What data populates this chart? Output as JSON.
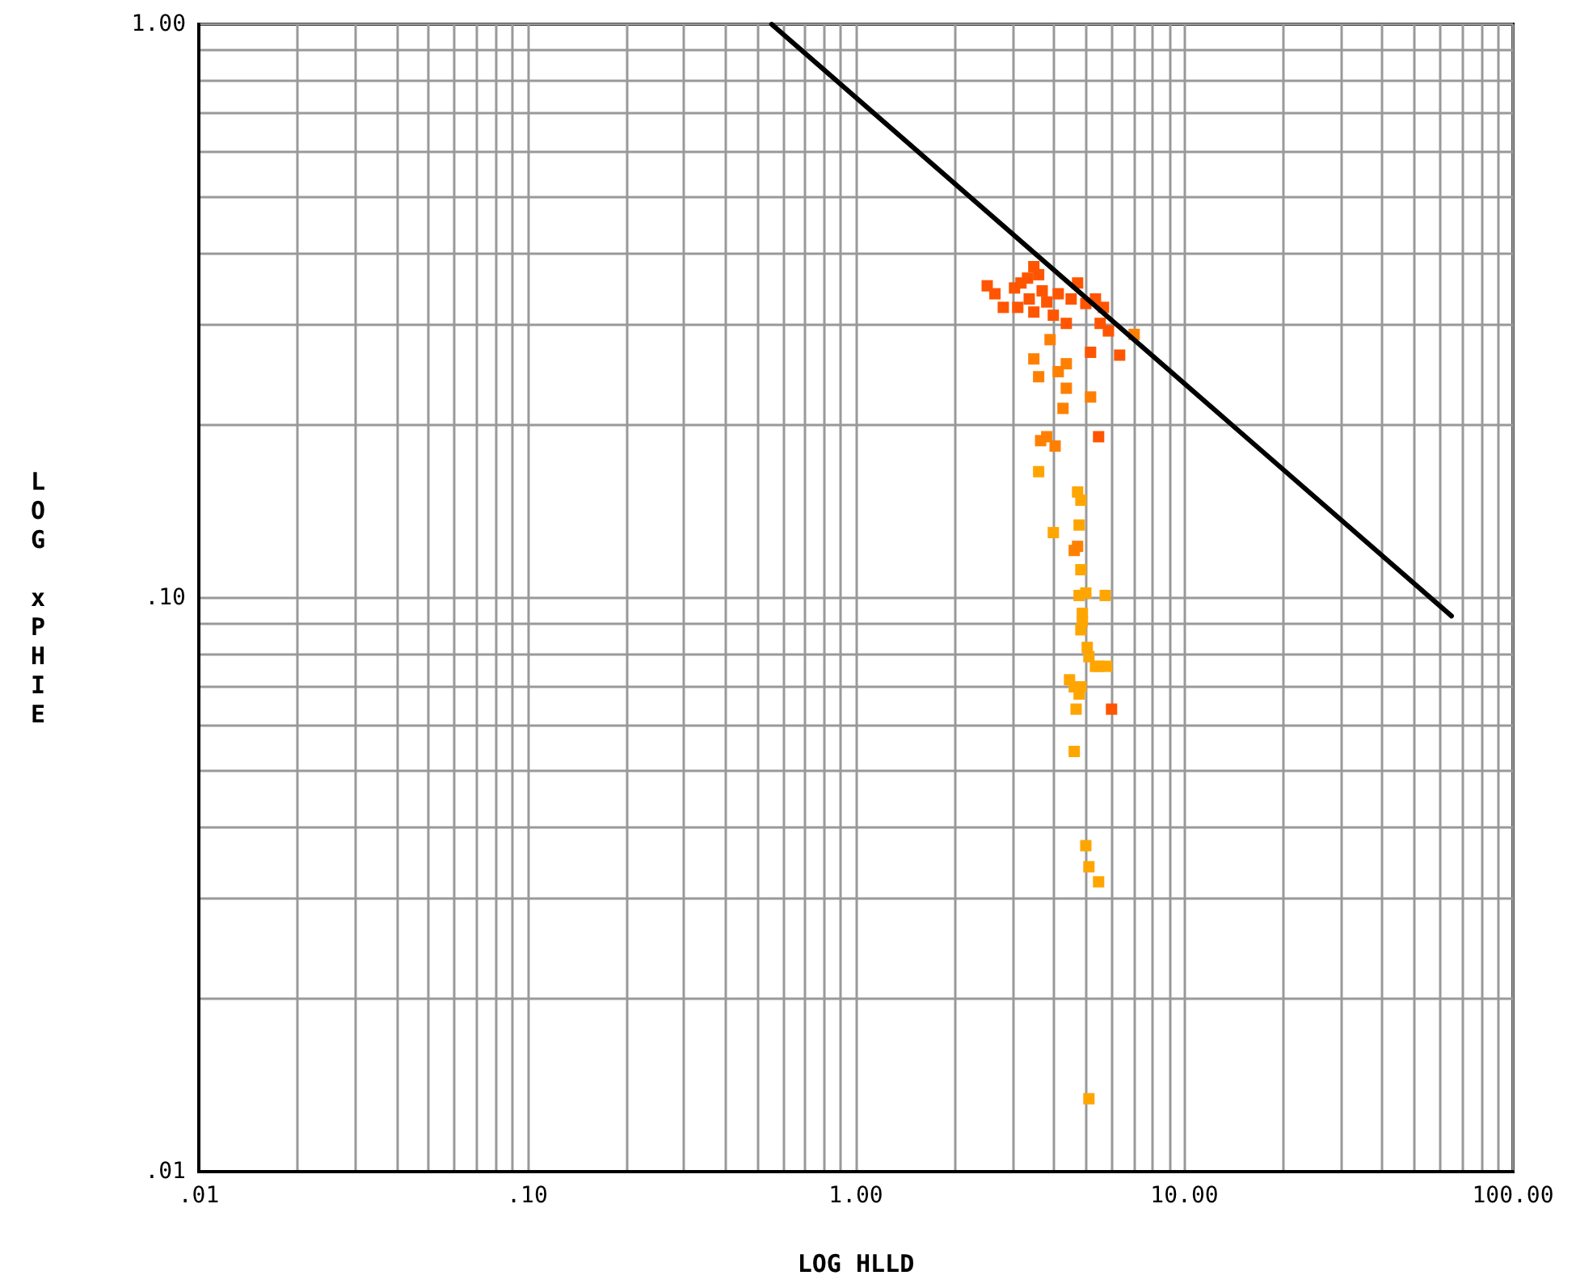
{
  "chart_data": {
    "type": "scatter",
    "xlabel": "LOG HLLD",
    "ylabel": "LOG xPHIE",
    "log": "xy",
    "grid": true,
    "xlim": [
      0.01,
      100
    ],
    "ylim": [
      0.01,
      1
    ],
    "xticks": [
      {
        "value": 0.01,
        "label": ".01"
      },
      {
        "value": 0.02,
        "label": null
      },
      {
        "value": 0.03,
        "label": null
      },
      {
        "value": 0.04,
        "label": null
      },
      {
        "value": 0.05,
        "label": null
      },
      {
        "value": 0.06,
        "label": null
      },
      {
        "value": 0.07,
        "label": null
      },
      {
        "value": 0.08,
        "label": null
      },
      {
        "value": 0.09,
        "label": null
      },
      {
        "value": 0.1,
        "label": ".10"
      },
      {
        "value": 0.2,
        "label": null
      },
      {
        "value": 0.3,
        "label": null
      },
      {
        "value": 0.4,
        "label": null
      },
      {
        "value": 0.5,
        "label": null
      },
      {
        "value": 0.6,
        "label": null
      },
      {
        "value": 0.7,
        "label": null
      },
      {
        "value": 0.8,
        "label": null
      },
      {
        "value": 0.9,
        "label": null
      },
      {
        "value": 1,
        "label": "1.00"
      },
      {
        "value": 2,
        "label": null
      },
      {
        "value": 3,
        "label": null
      },
      {
        "value": 4,
        "label": null
      },
      {
        "value": 5,
        "label": null
      },
      {
        "value": 6,
        "label": null
      },
      {
        "value": 7,
        "label": null
      },
      {
        "value": 8,
        "label": null
      },
      {
        "value": 9,
        "label": null
      },
      {
        "value": 10,
        "label": "10.00"
      },
      {
        "value": 20,
        "label": null
      },
      {
        "value": 30,
        "label": null
      },
      {
        "value": 40,
        "label": null
      },
      {
        "value": 50,
        "label": null
      },
      {
        "value": 60,
        "label": null
      },
      {
        "value": 70,
        "label": null
      },
      {
        "value": 80,
        "label": null
      },
      {
        "value": 90,
        "label": null
      },
      {
        "value": 100,
        "label": "100.00"
      }
    ],
    "yticks": [
      {
        "value": 0.01,
        "label": ".01"
      },
      {
        "value": 0.02,
        "label": null
      },
      {
        "value": 0.03,
        "label": null
      },
      {
        "value": 0.04,
        "label": null
      },
      {
        "value": 0.05,
        "label": null
      },
      {
        "value": 0.06,
        "label": null
      },
      {
        "value": 0.07,
        "label": null
      },
      {
        "value": 0.08,
        "label": null
      },
      {
        "value": 0.09,
        "label": null
      },
      {
        "value": 0.1,
        "label": ".10"
      },
      {
        "value": 0.2,
        "label": null
      },
      {
        "value": 0.3,
        "label": null
      },
      {
        "value": 0.4,
        "label": null
      },
      {
        "value": 0.5,
        "label": null
      },
      {
        "value": 0.6,
        "label": null
      },
      {
        "value": 0.7,
        "label": null
      },
      {
        "value": 0.8,
        "label": null
      },
      {
        "value": 0.9,
        "label": null
      },
      {
        "value": 1,
        "label": "1.00"
      }
    ],
    "series": [
      {
        "marker": "square",
        "x": [
          2.51,
          2.65,
          2.81,
          3.04,
          3.18,
          3.33,
          3.48,
          3.6,
          3.69,
          3.37,
          3.11,
          3.48,
          3.81,
          3.99,
          4.13,
          4.37,
          4.52,
          4.73,
          5.01,
          5.36,
          5.67,
          5.54,
          5.87,
          6.35,
          7.03,
          5.18,
          4.37,
          3.9,
          3.48,
          3.6,
          4.13,
          4.37,
          4.27,
          5.18,
          5.48,
          3.81,
          3.65,
          4.04,
          3.6,
          4.73,
          4.84,
          4.78,
          3.99,
          4.73,
          4.62,
          4.84,
          4.78,
          5.01,
          5.74,
          4.89,
          4.89,
          4.84,
          5.06,
          5.12,
          5.48,
          5.8,
          5.36,
          4.47,
          4.62,
          4.84,
          4.78,
          4.68,
          6.0,
          4.62,
          5.01,
          5.12,
          5.48,
          5.12
        ],
        "values": [
          0.35,
          0.339,
          0.321,
          0.347,
          0.354,
          0.361,
          0.378,
          0.366,
          0.343,
          0.332,
          0.321,
          0.315,
          0.328,
          0.311,
          0.339,
          0.301,
          0.332,
          0.354,
          0.326,
          0.332,
          0.321,
          0.301,
          0.292,
          0.265,
          0.288,
          0.268,
          0.256,
          0.282,
          0.261,
          0.243,
          0.248,
          0.232,
          0.214,
          0.224,
          0.191,
          0.191,
          0.188,
          0.184,
          0.166,
          0.153,
          0.148,
          0.134,
          0.13,
          0.123,
          0.121,
          0.112,
          0.101,
          0.102,
          0.101,
          0.094,
          0.091,
          0.088,
          0.082,
          0.079,
          0.076,
          0.076,
          0.076,
          0.072,
          0.07,
          0.07,
          0.068,
          0.064,
          0.064,
          0.054,
          0.037,
          0.034,
          0.032,
          0.0134
        ],
        "colors": [
          "#ff5500",
          "#ff5500",
          "#ff5500",
          "#ff5500",
          "#ff5500",
          "#ff5500",
          "#ff5500",
          "#ff5500",
          "#ff5500",
          "#ff5500",
          "#ff5500",
          "#ff5500",
          "#ff5500",
          "#ff5500",
          "#ff5500",
          "#ff5500",
          "#ff5500",
          "#ff5500",
          "#ff5500",
          "#ff5500",
          "#ff5500",
          "#ff5500",
          "#ff5500",
          "#ff5500",
          "#ff8000",
          "#ff5500",
          "#ff8000",
          "#ff8000",
          "#ff8000",
          "#ff8000",
          "#ff8000",
          "#ff8000",
          "#ff8000",
          "#ff8000",
          "#ff5500",
          "#ff8000",
          "#ff8000",
          "#ff8000",
          "#ffa500",
          "#ffa500",
          "#ffa500",
          "#ffa500",
          "#ffa500",
          "#ff8000",
          "#ff8000",
          "#ffa500",
          "#ffa500",
          "#ffa500",
          "#ffa500",
          "#ffa500",
          "#ffa500",
          "#ffa500",
          "#ffa500",
          "#ffa500",
          "#ffa500",
          "#ffa500",
          "#ffa500",
          "#ffa500",
          "#ffa500",
          "#ffa500",
          "#ffa500",
          "#ffa500",
          "#ff5500",
          "#ffa500",
          "#ffa500",
          "#ffa500",
          "#ffa500",
          "#ffa500"
        ]
      },
      {
        "type": "line",
        "color": "#000000",
        "marker": "none",
        "line_style": "solid",
        "x": [
          0.554,
          65.0
        ],
        "values": [
          1.0,
          0.093
        ]
      }
    ]
  }
}
